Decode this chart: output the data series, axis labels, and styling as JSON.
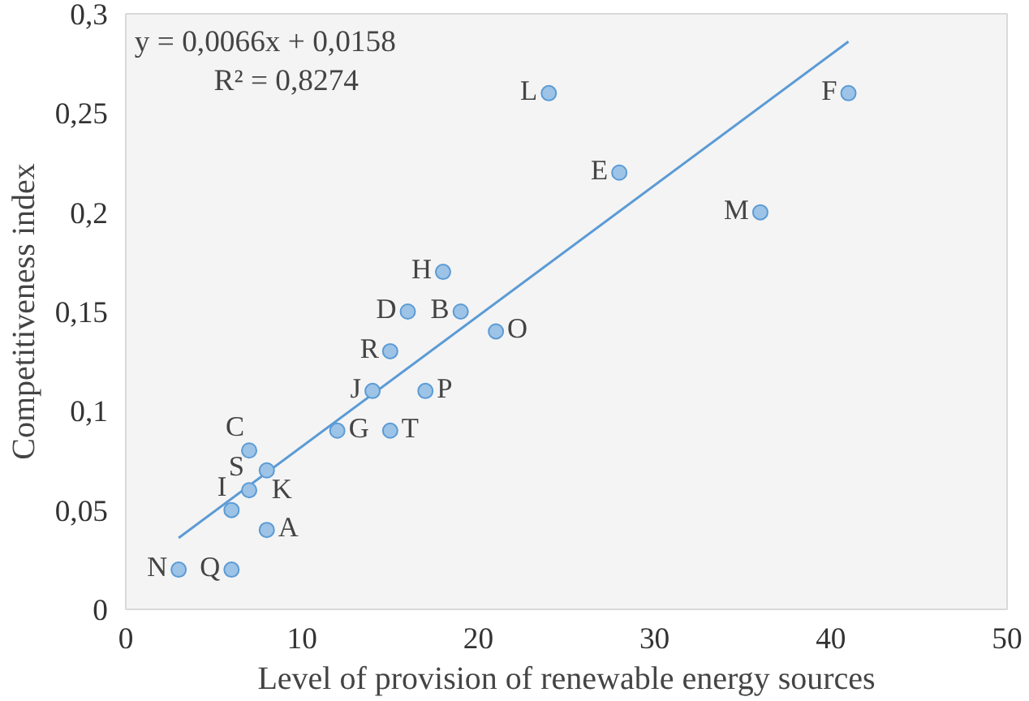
{
  "chart_data": {
    "type": "scatter",
    "xlabel": "Level of provision of renewable energy sources",
    "ylabel": "Competitiveness index",
    "xlim": [
      0,
      50
    ],
    "ylim": [
      0,
      0.3
    ],
    "xticks": [
      0,
      10,
      20,
      30,
      40,
      50
    ],
    "yticks": [
      {
        "value": 0,
        "label": "0"
      },
      {
        "value": 0.05,
        "label": "0,05"
      },
      {
        "value": 0.1,
        "label": "0,1"
      },
      {
        "value": 0.15,
        "label": "0,15"
      },
      {
        "value": 0.2,
        "label": "0,2"
      },
      {
        "value": 0.25,
        "label": "0,25"
      },
      {
        "value": 0.3,
        "label": "0,3"
      }
    ],
    "grid": false,
    "marker": "circle",
    "series": [
      {
        "color": "#9dc3e6",
        "x": [
          3,
          6,
          8,
          6,
          8,
          7,
          7,
          12,
          15,
          14,
          17,
          15,
          16,
          19,
          18,
          21,
          24,
          28,
          36,
          41
        ],
        "values": [
          0.02,
          0.02,
          0.04,
          0.05,
          0.07,
          0.06,
          0.08,
          0.09,
          0.09,
          0.11,
          0.11,
          0.13,
          0.15,
          0.15,
          0.17,
          0.14,
          0.26,
          0.22,
          0.2,
          0.26
        ]
      },
      {
        "type": "line",
        "color": "#5b9bd5",
        "x": [
          3,
          41
        ],
        "values": [
          0.036,
          0.286
        ],
        "marker": "none"
      }
    ],
    "annotations": [
      {
        "text": "N",
        "x": 3,
        "y": 0.02
      },
      {
        "text": "Q",
        "x": 6,
        "y": 0.02
      },
      {
        "text": "A",
        "x": 8,
        "y": 0.04
      },
      {
        "text": "I",
        "x": 6,
        "y": 0.05
      },
      {
        "text": "K",
        "x": 8,
        "y": 0.07
      },
      {
        "text": "S",
        "x": 7,
        "y": 0.06
      },
      {
        "text": "C",
        "x": 7,
        "y": 0.08
      },
      {
        "text": "G",
        "x": 12,
        "y": 0.09
      },
      {
        "text": "T",
        "x": 15,
        "y": 0.09
      },
      {
        "text": "J",
        "x": 14,
        "y": 0.11
      },
      {
        "text": "P",
        "x": 17,
        "y": 0.11
      },
      {
        "text": "R",
        "x": 15,
        "y": 0.13
      },
      {
        "text": "D",
        "x": 16,
        "y": 0.15
      },
      {
        "text": "B",
        "x": 19,
        "y": 0.15
      },
      {
        "text": "H",
        "x": 18,
        "y": 0.17
      },
      {
        "text": "O",
        "x": 21,
        "y": 0.14
      },
      {
        "text": "L",
        "x": 24,
        "y": 0.26
      },
      {
        "text": "E",
        "x": 28,
        "y": 0.22
      },
      {
        "text": "M",
        "x": 36,
        "y": 0.2
      },
      {
        "text": "F",
        "x": 41,
        "y": 0.26
      },
      "y = 0,0066x + 0,0158",
      "R² = 0,8274"
    ]
  }
}
